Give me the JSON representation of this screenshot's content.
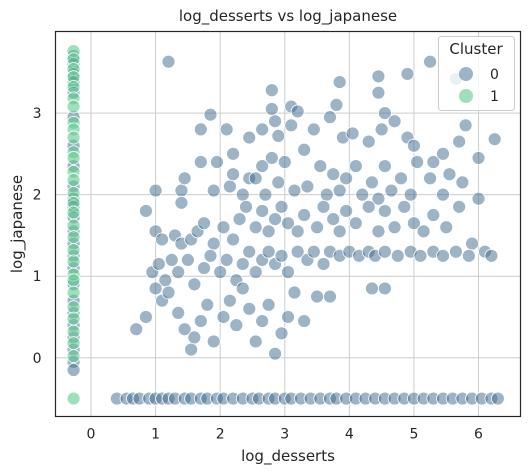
{
  "chart_data": {
    "type": "scatter",
    "title": "log_desserts vs log_japanese",
    "xlabel": "log_desserts",
    "ylabel": "log_japanese",
    "xlim": [
      -0.55,
      6.65
    ],
    "ylim": [
      -0.72,
      4.0
    ],
    "xticks": [
      0,
      1,
      2,
      3,
      4,
      5,
      6
    ],
    "yticks": [
      0,
      1,
      2,
      3
    ],
    "grid": true,
    "legend": {
      "title": "Cluster",
      "placement": "top-right",
      "entries": [
        {
          "label": "0",
          "color": "#3b6a8f"
        },
        {
          "label": "1",
          "color": "#5ecb8f"
        }
      ]
    },
    "series": [
      {
        "name": "0",
        "color": "#3b6a8f",
        "points": [
          [
            -0.27,
            3.7
          ],
          [
            -0.27,
            3.6
          ],
          [
            -0.27,
            3.48
          ],
          [
            -0.27,
            3.38
          ],
          [
            -0.27,
            3.25
          ],
          [
            -0.27,
            2.95
          ],
          [
            -0.27,
            2.6
          ],
          [
            -0.27,
            2.35
          ],
          [
            -0.27,
            2.1
          ],
          [
            -0.27,
            1.95
          ],
          [
            -0.27,
            1.85
          ],
          [
            -0.27,
            1.72
          ],
          [
            -0.27,
            1.55
          ],
          [
            -0.27,
            1.4
          ],
          [
            -0.27,
            1.25
          ],
          [
            -0.27,
            1.1
          ],
          [
            -0.27,
            0.9
          ],
          [
            -0.27,
            0.7
          ],
          [
            -0.27,
            0.55
          ],
          [
            -0.27,
            0.4
          ],
          [
            -0.27,
            0.25
          ],
          [
            -0.27,
            0.1
          ],
          [
            -0.27,
            -0.05
          ],
          [
            -0.27,
            -0.15
          ],
          [
            0.4,
            -0.5
          ],
          [
            0.55,
            -0.5
          ],
          [
            0.65,
            -0.5
          ],
          [
            0.75,
            -0.5
          ],
          [
            0.9,
            -0.5
          ],
          [
            1.0,
            -0.5
          ],
          [
            1.1,
            -0.5
          ],
          [
            1.2,
            -0.5
          ],
          [
            1.3,
            -0.5
          ],
          [
            1.45,
            -0.5
          ],
          [
            1.55,
            -0.5
          ],
          [
            1.7,
            -0.5
          ],
          [
            1.8,
            -0.5
          ],
          [
            1.95,
            -0.5
          ],
          [
            2.05,
            -0.5
          ],
          [
            2.2,
            -0.5
          ],
          [
            2.35,
            -0.5
          ],
          [
            2.5,
            -0.5
          ],
          [
            2.6,
            -0.5
          ],
          [
            2.75,
            -0.5
          ],
          [
            2.85,
            -0.5
          ],
          [
            3.0,
            -0.5
          ],
          [
            3.1,
            -0.5
          ],
          [
            3.25,
            -0.5
          ],
          [
            3.4,
            -0.5
          ],
          [
            3.55,
            -0.5
          ],
          [
            3.7,
            -0.5
          ],
          [
            3.8,
            -0.5
          ],
          [
            3.95,
            -0.5
          ],
          [
            4.1,
            -0.5
          ],
          [
            4.25,
            -0.5
          ],
          [
            4.4,
            -0.5
          ],
          [
            4.55,
            -0.5
          ],
          [
            4.7,
            -0.5
          ],
          [
            4.85,
            -0.5
          ],
          [
            5.0,
            -0.5
          ],
          [
            5.15,
            -0.5
          ],
          [
            5.3,
            -0.5
          ],
          [
            5.45,
            -0.5
          ],
          [
            5.6,
            -0.5
          ],
          [
            5.75,
            -0.5
          ],
          [
            5.9,
            -0.5
          ],
          [
            6.05,
            -0.5
          ],
          [
            6.2,
            -0.5
          ],
          [
            6.3,
            -0.5
          ],
          [
            1.2,
            3.63
          ],
          [
            2.8,
            3.28
          ],
          [
            2.8,
            3.05
          ],
          [
            2.85,
            2.9
          ],
          [
            3.1,
            3.08
          ],
          [
            3.2,
            3.02
          ],
          [
            3.85,
            3.38
          ],
          [
            4.45,
            3.45
          ],
          [
            4.45,
            3.25
          ],
          [
            4.55,
            3.0
          ],
          [
            4.9,
            3.48
          ],
          [
            5.25,
            3.63
          ],
          [
            5.65,
            3.42
          ],
          [
            1.7,
            2.8
          ],
          [
            1.85,
            2.98
          ],
          [
            2.1,
            2.8
          ],
          [
            2.45,
            2.7
          ],
          [
            2.65,
            2.8
          ],
          [
            2.9,
            2.72
          ],
          [
            3.1,
            2.85
          ],
          [
            3.3,
            2.55
          ],
          [
            3.45,
            2.8
          ],
          [
            3.7,
            2.95
          ],
          [
            3.8,
            3.1
          ],
          [
            3.9,
            2.7
          ],
          [
            4.05,
            2.75
          ],
          [
            4.3,
            2.65
          ],
          [
            4.5,
            2.8
          ],
          [
            4.7,
            2.9
          ],
          [
            4.9,
            2.7
          ],
          [
            5.0,
            2.6
          ],
          [
            5.3,
            2.4
          ],
          [
            5.45,
            2.5
          ],
          [
            5.7,
            2.65
          ],
          [
            5.8,
            2.85
          ],
          [
            6.0,
            2.45
          ],
          [
            6.25,
            2.68
          ],
          [
            1.0,
            2.05
          ],
          [
            1.4,
            2.05
          ],
          [
            1.4,
            1.9
          ],
          [
            1.45,
            2.2
          ],
          [
            1.7,
            2.4
          ],
          [
            1.9,
            2.05
          ],
          [
            1.95,
            2.4
          ],
          [
            2.15,
            2.1
          ],
          [
            2.2,
            2.25
          ],
          [
            2.2,
            2.5
          ],
          [
            2.35,
            2.0
          ],
          [
            2.45,
            2.2
          ],
          [
            2.55,
            2.2
          ],
          [
            2.65,
            2.35
          ],
          [
            2.7,
            2.0
          ],
          [
            2.8,
            2.45
          ],
          [
            2.9,
            2.15
          ],
          [
            3.0,
            2.4
          ],
          [
            3.15,
            2.05
          ],
          [
            3.35,
            2.1
          ],
          [
            3.55,
            2.35
          ],
          [
            3.65,
            2.0
          ],
          [
            3.75,
            2.25
          ],
          [
            3.85,
            2.05
          ],
          [
            3.95,
            2.2
          ],
          [
            4.1,
            2.35
          ],
          [
            4.2,
            2.0
          ],
          [
            4.35,
            2.15
          ],
          [
            4.45,
            1.95
          ],
          [
            4.55,
            2.35
          ],
          [
            4.65,
            2.05
          ],
          [
            4.8,
            2.2
          ],
          [
            4.95,
            2.0
          ],
          [
            5.05,
            2.4
          ],
          [
            5.25,
            2.2
          ],
          [
            5.45,
            2.0
          ],
          [
            5.55,
            2.25
          ],
          [
            5.75,
            2.15
          ],
          [
            6.0,
            1.95
          ],
          [
            0.85,
            1.8
          ],
          [
            1.0,
            1.55
          ],
          [
            1.1,
            1.45
          ],
          [
            1.3,
            1.5
          ],
          [
            1.4,
            1.4
          ],
          [
            1.55,
            1.45
          ],
          [
            1.65,
            1.55
          ],
          [
            1.75,
            1.65
          ],
          [
            1.9,
            1.4
          ],
          [
            2.05,
            1.6
          ],
          [
            2.2,
            1.45
          ],
          [
            2.3,
            1.7
          ],
          [
            2.4,
            1.85
          ],
          [
            2.55,
            1.6
          ],
          [
            2.65,
            1.8
          ],
          [
            2.75,
            1.55
          ],
          [
            2.85,
            1.7
          ],
          [
            2.95,
            1.85
          ],
          [
            3.05,
            1.65
          ],
          [
            3.2,
            1.55
          ],
          [
            3.3,
            1.75
          ],
          [
            3.5,
            1.6
          ],
          [
            3.6,
            1.85
          ],
          [
            3.75,
            1.7
          ],
          [
            3.85,
            1.55
          ],
          [
            3.95,
            1.8
          ],
          [
            4.1,
            1.65
          ],
          [
            4.3,
            1.85
          ],
          [
            4.45,
            1.55
          ],
          [
            4.55,
            1.8
          ],
          [
            4.7,
            1.6
          ],
          [
            4.85,
            1.85
          ],
          [
            5.0,
            1.65
          ],
          [
            5.15,
            1.55
          ],
          [
            5.3,
            1.75
          ],
          [
            5.5,
            1.6
          ],
          [
            5.7,
            1.85
          ],
          [
            5.9,
            1.4
          ],
          [
            6.1,
            1.3
          ],
          [
            0.95,
            1.05
          ],
          [
            1.05,
            1.15
          ],
          [
            1.15,
            0.95
          ],
          [
            1.25,
            1.2
          ],
          [
            1.35,
            1.05
          ],
          [
            1.5,
            1.2
          ],
          [
            1.6,
            0.9
          ],
          [
            1.75,
            1.1
          ],
          [
            1.85,
            1.25
          ],
          [
            2.0,
            1.05
          ],
          [
            2.1,
            1.2
          ],
          [
            2.25,
            0.95
          ],
          [
            2.35,
            1.15
          ],
          [
            2.45,
            1.3
          ],
          [
            2.55,
            1.05
          ],
          [
            2.65,
            1.2
          ],
          [
            2.75,
            1.3
          ],
          [
            2.85,
            1.15
          ],
          [
            2.95,
            1.25
          ],
          [
            3.05,
            1.05
          ],
          [
            3.2,
            1.3
          ],
          [
            3.35,
            1.2
          ],
          [
            3.45,
            1.3
          ],
          [
            3.6,
            1.15
          ],
          [
            3.7,
            1.3
          ],
          [
            3.85,
            1.25
          ],
          [
            4.0,
            1.3
          ],
          [
            4.15,
            1.25
          ],
          [
            4.3,
            1.3
          ],
          [
            4.4,
            1.25
          ],
          [
            4.55,
            1.3
          ],
          [
            4.75,
            1.25
          ],
          [
            4.95,
            1.3
          ],
          [
            5.1,
            1.25
          ],
          [
            5.3,
            1.3
          ],
          [
            5.45,
            1.25
          ],
          [
            5.65,
            1.3
          ],
          [
            5.85,
            1.25
          ],
          [
            6.2,
            1.25
          ],
          [
            0.7,
            0.35
          ],
          [
            0.85,
            0.5
          ],
          [
            1.0,
            0.85
          ],
          [
            1.1,
            0.7
          ],
          [
            1.2,
            0.8
          ],
          [
            1.35,
            0.55
          ],
          [
            1.45,
            0.35
          ],
          [
            1.55,
            0.1
          ],
          [
            1.6,
            0.25
          ],
          [
            1.7,
            0.45
          ],
          [
            1.8,
            0.65
          ],
          [
            1.9,
            0.2
          ],
          [
            2.05,
            0.5
          ],
          [
            2.15,
            0.7
          ],
          [
            2.25,
            0.4
          ],
          [
            2.35,
            0.85
          ],
          [
            2.45,
            0.6
          ],
          [
            2.55,
            0.2
          ],
          [
            2.65,
            0.45
          ],
          [
            2.75,
            0.65
          ],
          [
            2.85,
            0.05
          ],
          [
            2.95,
            0.3
          ],
          [
            3.05,
            0.5
          ],
          [
            3.15,
            0.8
          ],
          [
            3.3,
            0.45
          ],
          [
            3.5,
            0.75
          ],
          [
            3.7,
            0.75
          ],
          [
            4.35,
            0.85
          ],
          [
            4.55,
            0.85
          ]
        ]
      },
      {
        "name": "1",
        "color": "#5ecb8f",
        "points": [
          [
            -0.27,
            3.76
          ],
          [
            -0.27,
            3.66
          ],
          [
            -0.27,
            3.54
          ],
          [
            -0.27,
            3.44
          ],
          [
            -0.27,
            3.32
          ],
          [
            -0.27,
            3.18
          ],
          [
            -0.27,
            3.08
          ],
          [
            -0.27,
            2.88
          ],
          [
            -0.27,
            2.8
          ],
          [
            -0.27,
            2.7
          ],
          [
            -0.27,
            2.52
          ],
          [
            -0.27,
            2.45
          ],
          [
            -0.27,
            2.28
          ],
          [
            -0.27,
            2.18
          ],
          [
            -0.27,
            2.02
          ],
          [
            -0.27,
            1.9
          ],
          [
            -0.27,
            1.78
          ],
          [
            -0.27,
            1.62
          ],
          [
            -0.27,
            1.48
          ],
          [
            -0.27,
            1.32
          ],
          [
            -0.27,
            1.18
          ],
          [
            -0.27,
            1.02
          ],
          [
            -0.27,
            0.95
          ],
          [
            -0.27,
            0.8
          ],
          [
            -0.27,
            0.62
          ],
          [
            -0.27,
            0.48
          ],
          [
            -0.27,
            0.32
          ],
          [
            -0.27,
            0.18
          ],
          [
            -0.27,
            0.02
          ],
          [
            -0.27,
            -0.5
          ]
        ]
      }
    ]
  }
}
